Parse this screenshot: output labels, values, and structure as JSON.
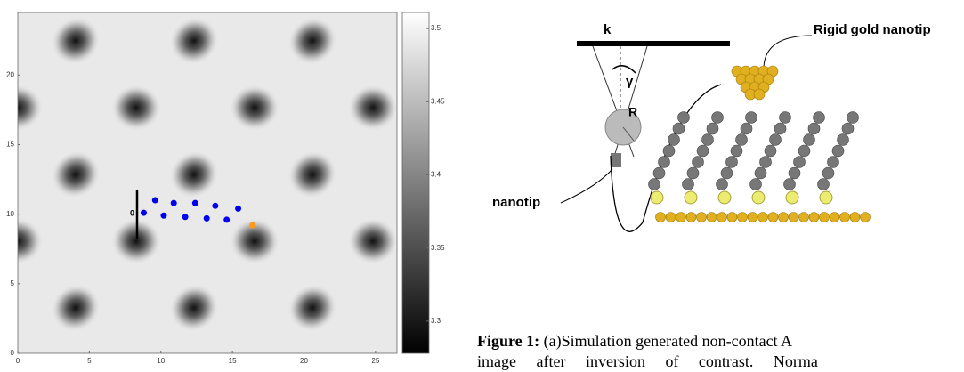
{
  "chart_data": {
    "type": "scatter",
    "xlim": [
      0,
      26.5
    ],
    "ylim": [
      0,
      24.5
    ],
    "xticks": [
      0,
      5,
      10,
      15,
      20,
      25
    ],
    "yticks": [
      0,
      5,
      10,
      15,
      20
    ],
    "annotation": "0",
    "series": [
      {
        "color": "#0000ee",
        "x": [
          8.8,
          9.6,
          10.2,
          10.9,
          11.7,
          12.4,
          13.2,
          13.8,
          14.6,
          15.4
        ],
        "values": [
          10.1,
          11.0,
          9.9,
          10.8,
          9.8,
          10.8,
          9.7,
          10.6,
          9.6,
          10.4
        ]
      },
      {
        "color": "#ff9a1a",
        "x": [
          16.4
        ],
        "values": [
          9.2
        ]
      }
    ],
    "colorbar": {
      "lim": [
        3.278,
        3.511
      ],
      "ticks": [
        3.3,
        3.35,
        3.4,
        3.45,
        3.5
      ]
    }
  },
  "diagram": {
    "k": "k",
    "gamma": "γ",
    "R": "R",
    "nanotip": "nanotip",
    "gold_tip": "Rigid gold nanotip"
  },
  "caption": {
    "label": "Figure 1:",
    "lines": [
      "(a)Simulation generated non-contact A",
      "image after inversion of contrast. Norma"
    ]
  }
}
